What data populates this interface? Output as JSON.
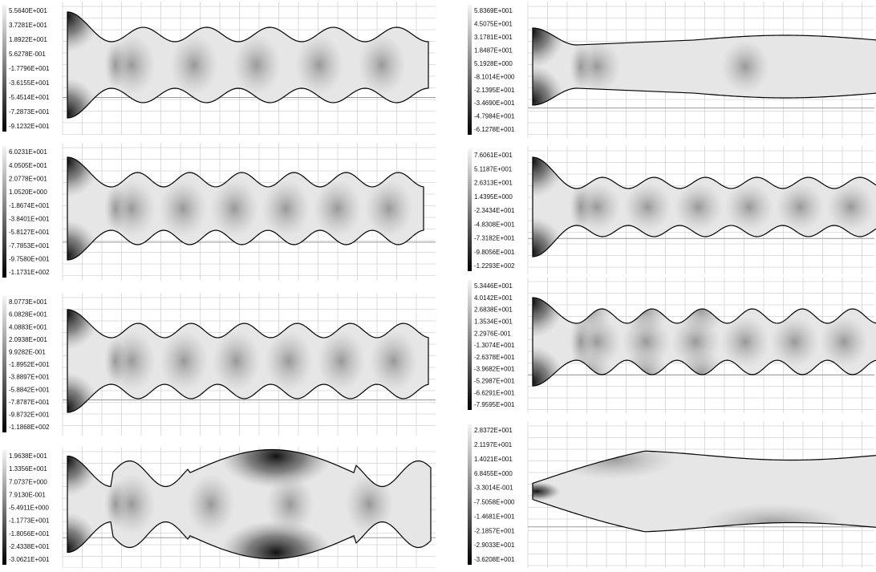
{
  "panels": [
    {
      "colorbar": [
        "5.5640E+001",
        "3.7281E+001",
        "1.8922E+001",
        "5.6278E-001",
        "-1.7796E+001",
        "-3.6155E+001",
        "-5.4514E+001",
        "-7.2873E+001",
        "-9.1232E+001"
      ]
    },
    {
      "colorbar": [
        "6.0231E+001",
        "4.0505E+001",
        "2.0778E+001",
        "1.0520E+000",
        "-1.8674E+001",
        "-3.8401E+001",
        "-5.8127E+001",
        "-7.7853E+001",
        "-9.7580E+001",
        "-1.1731E+002"
      ]
    },
    {
      "colorbar": [
        "8.0773E+001",
        "6.0828E+001",
        "4.0883E+001",
        "2.0938E+001",
        "9.9282E-001",
        "-1.8952E+001",
        "-3.8897E+001",
        "-5.8842E+001",
        "-7.8787E+001",
        "-9.8732E+001",
        "-1.1868E+002"
      ]
    },
    {
      "colorbar": [
        "1.9638E+001",
        "1.3356E+001",
        "7.0737E+000",
        "7.9130E-001",
        "-5.4911E+000",
        "-1.1773E+001",
        "-1.8056E+001",
        "-2.4338E+001",
        "-3.0621E+001"
      ]
    },
    {
      "colorbar": [
        "5.8369E+001",
        "4.5075E+001",
        "3.1781E+001",
        "1.8487E+001",
        "5.1928E+000",
        "-8.1014E+000",
        "-2.1395E+001",
        "-3.4690E+001",
        "-4.7984E+001",
        "-6.1278E+001"
      ]
    },
    {
      "colorbar": [
        "7.6061E+001",
        "5.1187E+001",
        "2.6313E+001",
        "1.4395E+000",
        "-2.3434E+001",
        "-4.8308E+001",
        "-7.3182E+001",
        "-9.8056E+001",
        "-1.2293E+002"
      ]
    },
    {
      "colorbar": [
        "5.3446E+001",
        "4.0142E+001",
        "2.6838E+001",
        "1.3534E+001",
        "2.2976E-001",
        "-1.3074E+001",
        "-2.6378E+001",
        "-3.9682E+001",
        "-5.2987E+001",
        "-6.6291E+001",
        "-7.9595E+001"
      ]
    },
    {
      "colorbar": [
        "2.8372E+001",
        "2.1197E+001",
        "1.4021E+001",
        "6.8455E+000",
        "-3.3014E-001",
        "-7.5058E+000",
        "-1.4681E+001",
        "-2.1857E+001",
        "-2.9033E+001",
        "-3.6208E+001"
      ]
    }
  ]
}
